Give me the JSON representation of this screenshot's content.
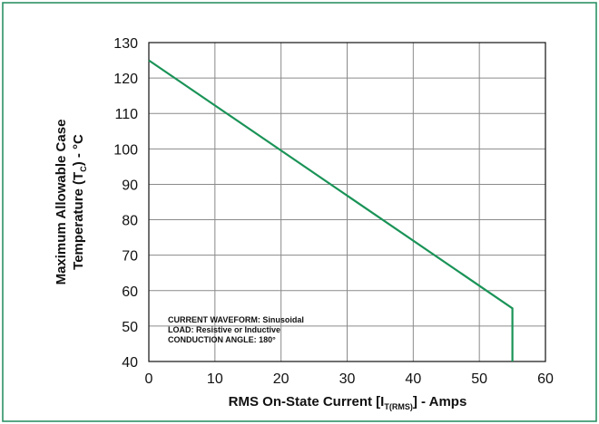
{
  "colors": {
    "border": "#1f8a5a",
    "line": "#1a9357",
    "grid": "#8a8a8a"
  },
  "chart_data": {
    "type": "line",
    "title": "",
    "xlabel": {
      "prefix": "RMS On-State Current [I",
      "subscript": "T(RMS)",
      "suffix": "] - Amps"
    },
    "ylabel": {
      "line1": "Maximum Allowable Case",
      "line2_prefix": "Temperature (T",
      "line2_subscript": "C",
      "line2_suffix": ") - °C"
    },
    "xlim": [
      0,
      60
    ],
    "ylim": [
      40,
      130
    ],
    "xticks": [
      "0",
      "10",
      "20",
      "30",
      "40",
      "50",
      "60"
    ],
    "yticks": [
      "40",
      "50",
      "60",
      "70",
      "80",
      "90",
      "100",
      "110",
      "120",
      "130"
    ],
    "grid": true,
    "series": [
      {
        "x": [
          0,
          55,
          55
        ],
        "y": [
          125,
          55,
          40
        ]
      }
    ],
    "annotation": [
      "CURRENT WAVEFORM: Sinusoidal",
      "LOAD: Resistive or Inductive",
      "CONDUCTION ANGLE: 180°"
    ]
  }
}
